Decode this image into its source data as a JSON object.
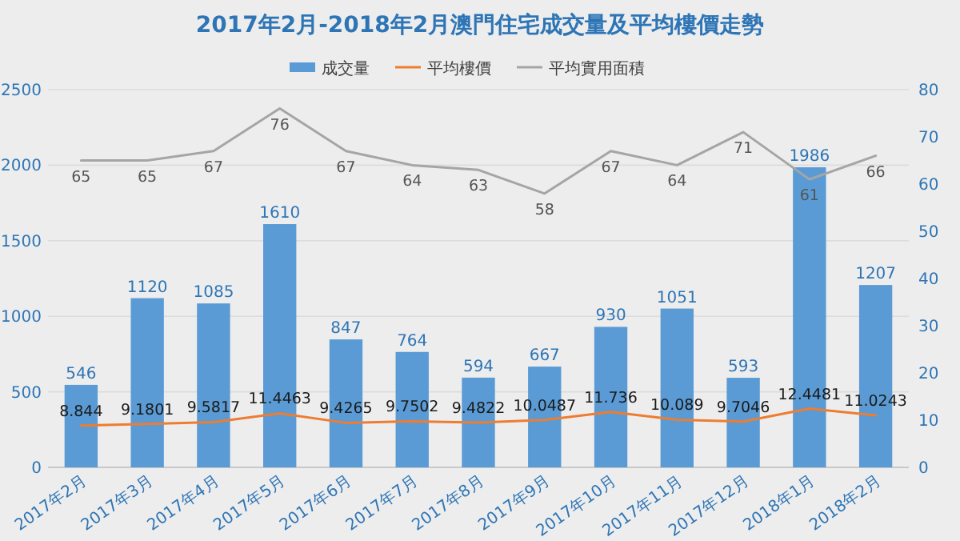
{
  "chart_data": {
    "type": "bar",
    "title": "2017年2月-2018年2月澳門住宅成交量及平均樓價走勢",
    "categories": [
      "2017年2月",
      "2017年3月",
      "2017年4月",
      "2017年5月",
      "2017年6月",
      "2017年7月",
      "2017年8月",
      "2017年9月",
      "2017年10月",
      "2017年11月",
      "2017年12月",
      "2018年1月",
      "2018年2月"
    ],
    "series": [
      {
        "name": "成交量",
        "color": "#5b9bd5",
        "values": [
          546,
          1120,
          1085,
          1610,
          847,
          764,
          594,
          667,
          930,
          1051,
          593,
          1986,
          1207
        ]
      },
      {
        "name": "平均樓價",
        "type": "line",
        "axis": "y2",
        "color": "#ed7d31",
        "values": [
          8.844,
          9.1801,
          9.5817,
          11.4463,
          9.4265,
          9.7502,
          9.4822,
          10.0487,
          11.736,
          10.089,
          9.7046,
          12.4481,
          11.0243
        ]
      },
      {
        "name": "平均實用面積",
        "type": "line",
        "axis": "y2",
        "color": "#a5a5a5",
        "values": [
          65,
          65,
          67,
          76,
          67,
          64,
          63,
          58,
          67,
          64,
          71,
          61,
          66
        ]
      }
    ],
    "ylim": [
      0,
      2500
    ],
    "yticks": [
      0,
      500,
      1000,
      1500,
      2000,
      2500
    ],
    "y2lim": [
      0,
      80
    ],
    "y2ticks": [
      0,
      10,
      20,
      30,
      40,
      50,
      60,
      70,
      80
    ],
    "data_labels": true,
    "legend": "top",
    "grid": "y",
    "marker": "none",
    "line_style": "solid"
  }
}
